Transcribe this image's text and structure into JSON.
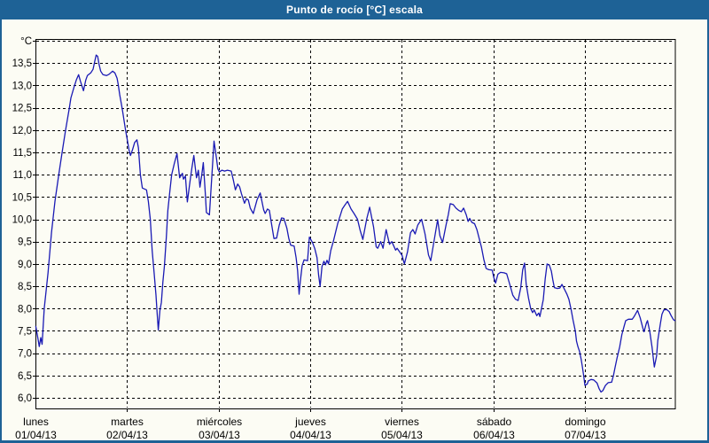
{
  "window": {
    "title": "Punto de rocío [°C] escala",
    "titlebar_color": "#1E6296",
    "border_color": "#1E6296",
    "panel_color": "#FCFCF4"
  },
  "chart_data": {
    "type": "line",
    "title": "Punto de rocío [°C] escala",
    "ylabel": "°C",
    "y_unit_label": "°C",
    "ylim": [
      5.77,
      14.04
    ],
    "y_gridline_step": 0.5,
    "y_gridlines": [
      6.0,
      6.5,
      7.0,
      7.5,
      8.0,
      8.5,
      9.0,
      9.5,
      10.0,
      10.5,
      11.0,
      11.5,
      12.0,
      12.5,
      13.0,
      13.5,
      14.0
    ],
    "y_tick_values": [
      6.0,
      6.5,
      7.0,
      7.5,
      8.0,
      8.5,
      9.0,
      9.5,
      10.0,
      10.5,
      11.0,
      11.5,
      12.0,
      12.5,
      13.0,
      13.5
    ],
    "grid": true,
    "grid_style": "dashed",
    "line_color": "#1A1AB4",
    "x_range_hours": [
      0,
      168
    ],
    "x_days": [
      {
        "name": "lunes",
        "date": "01/04/13"
      },
      {
        "name": "martes",
        "date": "02/04/13"
      },
      {
        "name": "miércoles",
        "date": "03/04/13"
      },
      {
        "name": "jueves",
        "date": "04/04/13"
      },
      {
        "name": "viernes",
        "date": "05/04/13"
      },
      {
        "name": "sábado",
        "date": "06/04/13"
      },
      {
        "name": "domingo",
        "date": "07/04/13"
      }
    ],
    "series": [
      {
        "name": "Punto de rocío",
        "unit": "°C",
        "points": [
          [
            0.1,
            7.6
          ],
          [
            0.5,
            7.4
          ],
          [
            1.0,
            7.15
          ],
          [
            1.4,
            7.35
          ],
          [
            1.75,
            7.2
          ],
          [
            2.3,
            8.0
          ],
          [
            3.3,
            8.8
          ],
          [
            4.2,
            9.7
          ],
          [
            5.1,
            10.4
          ],
          [
            6.1,
            11.0
          ],
          [
            7.0,
            11.5
          ],
          [
            7.9,
            12.0
          ],
          [
            8.9,
            12.5
          ],
          [
            9.3,
            12.72
          ],
          [
            10.1,
            12.96
          ],
          [
            10.7,
            13.12
          ],
          [
            11.3,
            13.24
          ],
          [
            11.8,
            13.09
          ],
          [
            12.6,
            12.88
          ],
          [
            13.2,
            13.12
          ],
          [
            13.6,
            13.22
          ],
          [
            14.5,
            13.28
          ],
          [
            15.1,
            13.36
          ],
          [
            15.5,
            13.52
          ],
          [
            15.9,
            13.68
          ],
          [
            16.3,
            13.65
          ],
          [
            16.7,
            13.46
          ],
          [
            17.1,
            13.32
          ],
          [
            17.7,
            13.24
          ],
          [
            18.6,
            13.22
          ],
          [
            19.3,
            13.25
          ],
          [
            20.2,
            13.32
          ],
          [
            20.8,
            13.28
          ],
          [
            21.4,
            13.16
          ],
          [
            21.7,
            13.02
          ],
          [
            22.1,
            12.79
          ],
          [
            22.5,
            12.59
          ],
          [
            22.9,
            12.39
          ],
          [
            23.3,
            12.17
          ],
          [
            23.7,
            11.96
          ],
          [
            24.1,
            11.76
          ],
          [
            24.5,
            11.56
          ],
          [
            24.9,
            11.43
          ],
          [
            25.4,
            11.55
          ],
          [
            26.0,
            11.72
          ],
          [
            26.6,
            11.78
          ],
          [
            27.0,
            11.6
          ],
          [
            27.5,
            11.0
          ],
          [
            28.0,
            10.7
          ],
          [
            29.1,
            10.66
          ],
          [
            29.6,
            10.4
          ],
          [
            30.1,
            10.0
          ],
          [
            30.6,
            9.3
          ],
          [
            31.1,
            8.8
          ],
          [
            31.6,
            8.3
          ],
          [
            31.9,
            7.9
          ],
          [
            32.2,
            7.52
          ],
          [
            32.6,
            7.95
          ],
          [
            33.0,
            8.14
          ],
          [
            33.4,
            8.6
          ],
          [
            33.8,
            8.95
          ],
          [
            34.3,
            9.6
          ],
          [
            34.7,
            10.2
          ],
          [
            35.2,
            10.6
          ],
          [
            35.7,
            11.0
          ],
          [
            36.4,
            11.25
          ],
          [
            37.1,
            11.47
          ],
          [
            37.8,
            10.93
          ],
          [
            38.5,
            11.03
          ],
          [
            38.8,
            10.9
          ],
          [
            39.3,
            10.97
          ],
          [
            39.8,
            10.39
          ],
          [
            40.5,
            10.85
          ],
          [
            41.0,
            11.15
          ],
          [
            41.5,
            11.43
          ],
          [
            42.2,
            10.93
          ],
          [
            42.7,
            11.1
          ],
          [
            43.1,
            10.72
          ],
          [
            43.6,
            11.0
          ],
          [
            44.0,
            11.27
          ],
          [
            44.5,
            10.6
          ],
          [
            44.8,
            10.15
          ],
          [
            45.6,
            10.1
          ],
          [
            46.1,
            10.8
          ],
          [
            46.8,
            11.75
          ],
          [
            47.4,
            11.39
          ],
          [
            47.8,
            11.13
          ],
          [
            48.2,
            11.06
          ],
          [
            48.9,
            11.1
          ],
          [
            49.6,
            11.08
          ],
          [
            50.3,
            11.1
          ],
          [
            51.3,
            11.08
          ],
          [
            51.9,
            10.87
          ],
          [
            52.4,
            10.66
          ],
          [
            53.0,
            10.79
          ],
          [
            53.5,
            10.73
          ],
          [
            54.0,
            10.57
          ],
          [
            54.8,
            10.36
          ],
          [
            55.3,
            10.46
          ],
          [
            55.8,
            10.43
          ],
          [
            56.3,
            10.25
          ],
          [
            57.1,
            10.13
          ],
          [
            58.1,
            10.44
          ],
          [
            58.9,
            10.59
          ],
          [
            59.8,
            10.21
          ],
          [
            60.2,
            10.13
          ],
          [
            60.8,
            10.23
          ],
          [
            61.3,
            10.2
          ],
          [
            61.8,
            9.93
          ],
          [
            62.5,
            9.57
          ],
          [
            63.2,
            9.58
          ],
          [
            63.9,
            9.87
          ],
          [
            64.5,
            10.03
          ],
          [
            65.1,
            10.02
          ],
          [
            65.9,
            9.8
          ],
          [
            66.4,
            9.57
          ],
          [
            66.9,
            9.42
          ],
          [
            67.8,
            9.4
          ],
          [
            68.3,
            9.14
          ],
          [
            68.7,
            8.85
          ],
          [
            69.1,
            8.32
          ],
          [
            69.4,
            8.6
          ],
          [
            69.9,
            8.96
          ],
          [
            70.4,
            9.09
          ],
          [
            71.3,
            9.07
          ],
          [
            71.8,
            9.6
          ],
          [
            72.6,
            9.48
          ],
          [
            73.2,
            9.34
          ],
          [
            73.8,
            9.14
          ],
          [
            74.2,
            8.75
          ],
          [
            74.6,
            8.5
          ],
          [
            75.1,
            8.94
          ],
          [
            75.6,
            9.06
          ],
          [
            76.0,
            8.98
          ],
          [
            76.4,
            9.08
          ],
          [
            76.8,
            9.0
          ],
          [
            77.4,
            9.3
          ],
          [
            78.1,
            9.51
          ],
          [
            79.2,
            9.9
          ],
          [
            80.4,
            10.23
          ],
          [
            81.1,
            10.32
          ],
          [
            81.8,
            10.4
          ],
          [
            82.7,
            10.23
          ],
          [
            83.5,
            10.13
          ],
          [
            84.4,
            10.0
          ],
          [
            85.1,
            9.75
          ],
          [
            85.8,
            9.55
          ],
          [
            86.8,
            10.0
          ],
          [
            87.6,
            10.27
          ],
          [
            88.6,
            9.83
          ],
          [
            89.3,
            9.38
          ],
          [
            89.7,
            9.35
          ],
          [
            90.5,
            9.5
          ],
          [
            91.1,
            9.35
          ],
          [
            91.9,
            9.77
          ],
          [
            92.8,
            9.44
          ],
          [
            93.4,
            9.5
          ],
          [
            94.4,
            9.31
          ],
          [
            94.8,
            9.35
          ],
          [
            96.1,
            9.19
          ],
          [
            96.7,
            9.0
          ],
          [
            97.5,
            9.27
          ],
          [
            98.3,
            9.7
          ],
          [
            98.9,
            9.77
          ],
          [
            99.5,
            9.67
          ],
          [
            100.2,
            9.87
          ],
          [
            101.2,
            10.0
          ],
          [
            102.1,
            9.67
          ],
          [
            103.0,
            9.2
          ],
          [
            103.6,
            9.07
          ],
          [
            104.5,
            9.53
          ],
          [
            105.4,
            9.99
          ],
          [
            106.0,
            9.63
          ],
          [
            106.7,
            9.48
          ],
          [
            107.6,
            9.87
          ],
          [
            108.2,
            10.1
          ],
          [
            108.7,
            10.35
          ],
          [
            109.5,
            10.33
          ],
          [
            110.2,
            10.25
          ],
          [
            110.9,
            10.2
          ],
          [
            111.6,
            10.17
          ],
          [
            112.2,
            10.25
          ],
          [
            112.9,
            10.1
          ],
          [
            113.4,
            9.95
          ],
          [
            113.8,
            10.02
          ],
          [
            114.4,
            9.93
          ],
          [
            115.1,
            9.9
          ],
          [
            115.7,
            9.77
          ],
          [
            116.3,
            9.57
          ],
          [
            116.9,
            9.37
          ],
          [
            117.5,
            9.1
          ],
          [
            118.1,
            8.9
          ],
          [
            118.8,
            8.87
          ],
          [
            119.7,
            8.86
          ],
          [
            120.1,
            8.7
          ],
          [
            120.6,
            8.57
          ],
          [
            121.2,
            8.77
          ],
          [
            121.9,
            8.81
          ],
          [
            122.8,
            8.8
          ],
          [
            123.5,
            8.78
          ],
          [
            124.3,
            8.54
          ],
          [
            125.1,
            8.3
          ],
          [
            125.8,
            8.21
          ],
          [
            126.5,
            8.18
          ],
          [
            127.2,
            8.47
          ],
          [
            127.7,
            8.87
          ],
          [
            128.2,
            9.02
          ],
          [
            128.6,
            8.55
          ],
          [
            129.2,
            8.24
          ],
          [
            129.8,
            8.0
          ],
          [
            130.3,
            7.91
          ],
          [
            130.7,
            7.97
          ],
          [
            131.4,
            7.84
          ],
          [
            131.9,
            7.9
          ],
          [
            132.2,
            7.82
          ],
          [
            133.1,
            8.2
          ],
          [
            133.6,
            8.67
          ],
          [
            134.1,
            9.0
          ],
          [
            134.7,
            8.97
          ],
          [
            135.2,
            8.84
          ],
          [
            135.6,
            8.64
          ],
          [
            136.0,
            8.47
          ],
          [
            136.8,
            8.45
          ],
          [
            137.4,
            8.46
          ],
          [
            138.0,
            8.54
          ],
          [
            138.7,
            8.42
          ],
          [
            139.3,
            8.32
          ],
          [
            139.8,
            8.21
          ],
          [
            140.4,
            7.97
          ],
          [
            140.9,
            7.74
          ],
          [
            141.5,
            7.49
          ],
          [
            141.8,
            7.27
          ],
          [
            142.2,
            7.14
          ],
          [
            142.6,
            7.04
          ],
          [
            143.0,
            6.87
          ],
          [
            143.3,
            6.71
          ],
          [
            143.7,
            6.48
          ],
          [
            144.0,
            6.28
          ],
          [
            144.6,
            6.31
          ],
          [
            144.9,
            6.38
          ],
          [
            145.6,
            6.41
          ],
          [
            146.3,
            6.4
          ],
          [
            147.2,
            6.33
          ],
          [
            147.7,
            6.21
          ],
          [
            148.2,
            6.13
          ],
          [
            148.7,
            6.16
          ],
          [
            149.4,
            6.28
          ],
          [
            150.1,
            6.34
          ],
          [
            151.0,
            6.35
          ],
          [
            151.5,
            6.51
          ],
          [
            151.9,
            6.68
          ],
          [
            152.4,
            6.88
          ],
          [
            153.1,
            7.14
          ],
          [
            153.7,
            7.42
          ],
          [
            154.3,
            7.61
          ],
          [
            154.7,
            7.73
          ],
          [
            155.4,
            7.76
          ],
          [
            156.4,
            7.76
          ],
          [
            156.9,
            7.82
          ],
          [
            157.8,
            7.96
          ],
          [
            158.5,
            7.79
          ],
          [
            159.2,
            7.56
          ],
          [
            159.5,
            7.48
          ],
          [
            160.1,
            7.67
          ],
          [
            160.4,
            7.73
          ],
          [
            161.0,
            7.48
          ],
          [
            161.6,
            7.14
          ],
          [
            162.2,
            6.69
          ],
          [
            162.8,
            6.94
          ],
          [
            163.1,
            7.28
          ],
          [
            163.8,
            7.67
          ],
          [
            164.2,
            7.87
          ],
          [
            164.7,
            7.97
          ],
          [
            165.4,
            7.98
          ],
          [
            166.1,
            7.93
          ],
          [
            166.6,
            7.84
          ],
          [
            167.2,
            7.75
          ],
          [
            167.6,
            7.73
          ]
        ]
      }
    ]
  }
}
